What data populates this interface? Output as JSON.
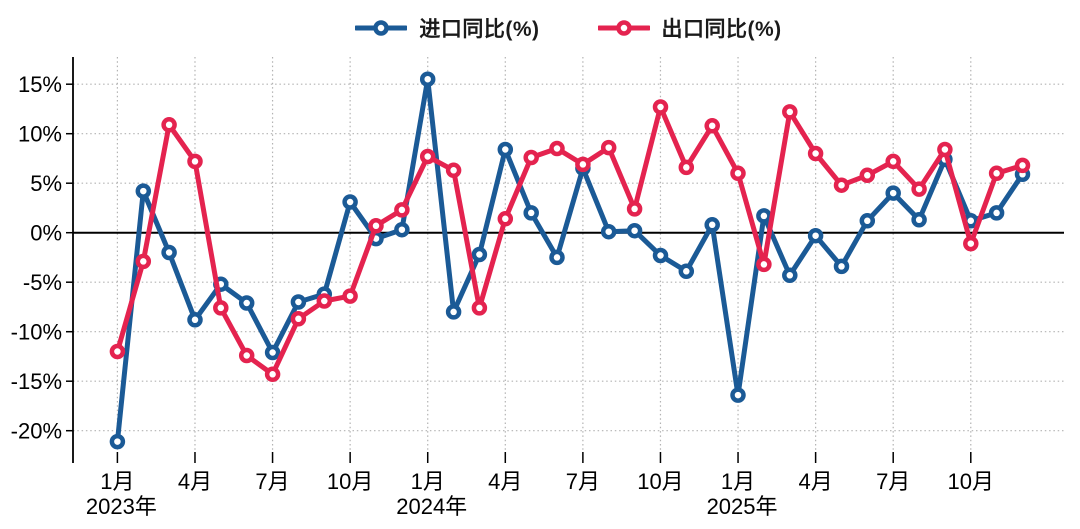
{
  "page": {
    "background": "#ffffff"
  },
  "legend": {
    "items": [
      {
        "label": "进口同比(%)",
        "color": "#1B5A96"
      },
      {
        "label": "出口同比(%)",
        "color": "#E4234F"
      }
    ]
  },
  "chart_data": {
    "type": "line",
    "title": "",
    "xlabel": "",
    "ylabel": "",
    "y_unit": "%",
    "grid": "dotted",
    "legend_position": "top-center",
    "zero_line": true,
    "ylim": [
      -23,
      17.7
    ],
    "x_labels": [
      "2023-01",
      "2023-02",
      "2023-03",
      "2023-04",
      "2023-05",
      "2023-06",
      "2023-07",
      "2023-08",
      "2023-09",
      "2023-10",
      "2023-11",
      "2023-12",
      "2024-01",
      "2024-02",
      "2024-03",
      "2024-04",
      "2024-05",
      "2024-06",
      "2024-07",
      "2024-08",
      "2024-09",
      "2024-10",
      "2024-11",
      "2024-12",
      "2025-01",
      "2025-02",
      "2025-03",
      "2025-04",
      "2025-05",
      "2025-06",
      "2025-07",
      "2025-08",
      "2025-09",
      "2025-10",
      "2025-11",
      "2025-12"
    ],
    "y_ticks": [
      {
        "value": 15,
        "label": "15%"
      },
      {
        "value": 10,
        "label": "10%"
      },
      {
        "value": 5,
        "label": "5%"
      },
      {
        "value": 0,
        "label": "0%"
      },
      {
        "value": -5,
        "label": "-5%"
      },
      {
        "value": -10,
        "label": "-10%"
      },
      {
        "value": -15,
        "label": "-15%"
      },
      {
        "value": -20,
        "label": "-20%"
      }
    ],
    "x_ticks": [
      {
        "index": 0,
        "label": "1月",
        "year": "2023年"
      },
      {
        "index": 3,
        "label": "4月"
      },
      {
        "index": 6,
        "label": "7月"
      },
      {
        "index": 9,
        "label": "10月"
      },
      {
        "index": 12,
        "label": "1月",
        "year": "2024年"
      },
      {
        "index": 15,
        "label": "4月"
      },
      {
        "index": 18,
        "label": "7月"
      },
      {
        "index": 21,
        "label": "10月"
      },
      {
        "index": 24,
        "label": "1月",
        "year": "2025年"
      },
      {
        "index": 27,
        "label": "4月"
      },
      {
        "index": 30,
        "label": "7月"
      },
      {
        "index": 33,
        "label": "10月"
      }
    ],
    "series": [
      {
        "key": "import-series",
        "name": "进口同比(%)",
        "color": "#1B5A96",
        "values": [
          -21.1,
          4.2,
          -2.0,
          -8.8,
          -5.2,
          -7.1,
          -12.1,
          -7.0,
          -6.2,
          3.1,
          -0.6,
          0.3,
          15.5,
          -8.0,
          -2.2,
          8.4,
          2.0,
          -2.5,
          6.5,
          0.1,
          0.2,
          -2.3,
          -3.9,
          0.8,
          -16.4,
          1.7,
          -4.3,
          -0.3,
          -3.4,
          1.2,
          4.0,
          1.3,
          7.4,
          1.2,
          2.0,
          5.9
        ]
      },
      {
        "key": "export-series",
        "name": "出口同比(%)",
        "color": "#E4234F",
        "values": [
          -12.0,
          -2.9,
          10.9,
          7.2,
          -7.6,
          -12.4,
          -14.3,
          -8.7,
          -6.9,
          -6.4,
          0.7,
          2.3,
          7.7,
          6.3,
          -7.6,
          1.4,
          7.6,
          8.5,
          6.9,
          8.6,
          2.4,
          12.7,
          6.6,
          10.8,
          6.0,
          -3.2,
          12.2,
          8.0,
          4.8,
          5.8,
          7.2,
          4.4,
          8.4,
          -1.1,
          6.0,
          6.8
        ]
      }
    ]
  }
}
